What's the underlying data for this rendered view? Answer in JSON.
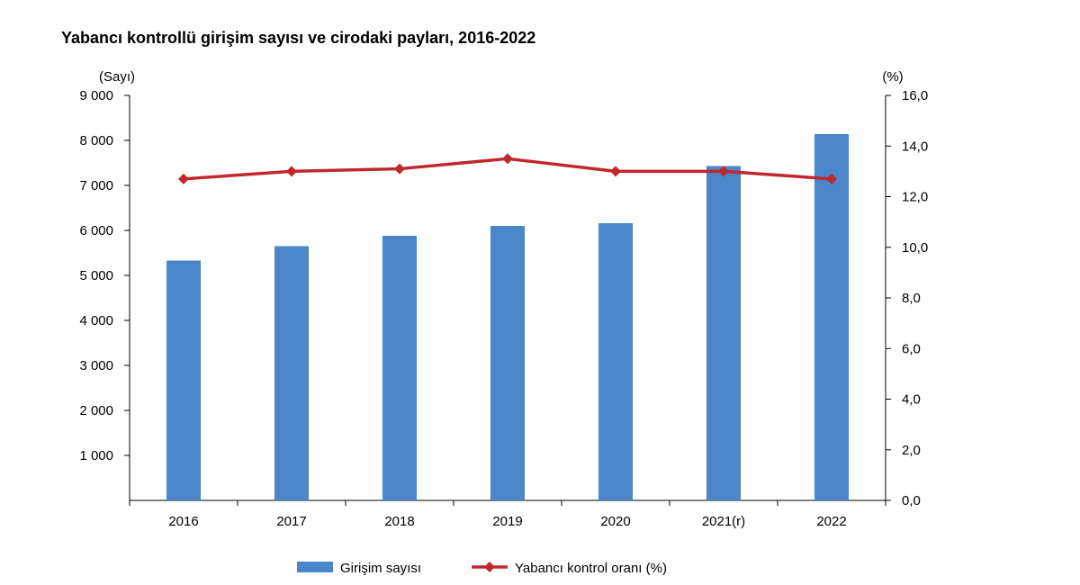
{
  "chart_data": {
    "type": "bar+line",
    "title": "Yabancı kontrollü girişim sayısı ve cirodaki payları, 2016-2022",
    "categories": [
      "2016",
      "2017",
      "2018",
      "2019",
      "2020",
      "2021(r)",
      "2022"
    ],
    "series": [
      {
        "name": "Girişim sayısı",
        "type": "bar",
        "axis": "left",
        "color": "#4a86c8",
        "values": [
          5330,
          5650,
          5880,
          6100,
          6160,
          7430,
          8140
        ]
      },
      {
        "name": "Yabancı kontrol oranı (%)",
        "type": "line",
        "axis": "right",
        "color": "#c0282d",
        "values": [
          12.7,
          13.0,
          13.1,
          13.5,
          13.0,
          13.0,
          12.7
        ]
      }
    ],
    "y_left": {
      "unit_label": "(Sayı)",
      "range": [
        0,
        9000
      ],
      "tick_values": [
        1000,
        2000,
        3000,
        4000,
        5000,
        6000,
        7000,
        8000,
        9000
      ],
      "tick_labels": [
        "1 000",
        "2 000",
        "3 000",
        "4 000",
        "5 000",
        "6 000",
        "7 000",
        "8 000",
        "9 000"
      ]
    },
    "y_right": {
      "unit_label": "(%)",
      "range": [
        0,
        16
      ],
      "tick_values": [
        0,
        2,
        4,
        6,
        8,
        10,
        12,
        14,
        16
      ],
      "tick_labels": [
        "0,0",
        "2,0",
        "4,0",
        "6,0",
        "8,0",
        "10,0",
        "12,0",
        "14,0",
        "16,0"
      ]
    },
    "grid": false,
    "legend_position": "bottom",
    "legend": [
      "Girişim sayısı",
      "Yabancı kontrol oranı (%)"
    ]
  }
}
